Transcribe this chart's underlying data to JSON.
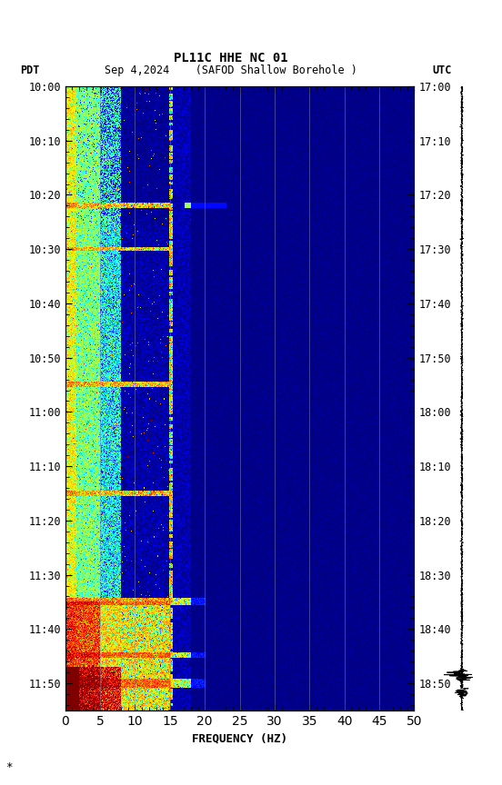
{
  "title_line1": "PL11C HHE NC 01",
  "title_line2": "Sep 4,2024    (SAFOD Shallow Borehole )",
  "left_label": "PDT",
  "right_label": "UTC",
  "xlabel": "FREQUENCY (HZ)",
  "freq_min": 0,
  "freq_max": 50,
  "colormap": "jet",
  "bg_color": "#ffffff",
  "vline_color": "#9090b0",
  "vline_freq": [
    5,
    10,
    15,
    20,
    25,
    30,
    35,
    40,
    45
  ],
  "freq_ticks": [
    0,
    5,
    10,
    15,
    20,
    25,
    30,
    35,
    40,
    45,
    50
  ],
  "pdt_ticks": [
    "10:00",
    "10:10",
    "10:20",
    "10:30",
    "10:40",
    "10:50",
    "11:00",
    "11:10",
    "11:20",
    "11:30",
    "11:40",
    "11:50"
  ],
  "utc_ticks": [
    "17:00",
    "17:10",
    "17:20",
    "17:30",
    "17:40",
    "17:50",
    "18:00",
    "18:10",
    "18:20",
    "18:30",
    "18:40",
    "18:50"
  ],
  "tick_minutes": [
    0,
    10,
    20,
    30,
    40,
    50,
    60,
    70,
    80,
    90,
    100,
    110
  ],
  "time_total_min": 115,
  "noise_seed": 42,
  "font_family": "monospace",
  "vmin": 0.0,
  "vmax": 1.0
}
